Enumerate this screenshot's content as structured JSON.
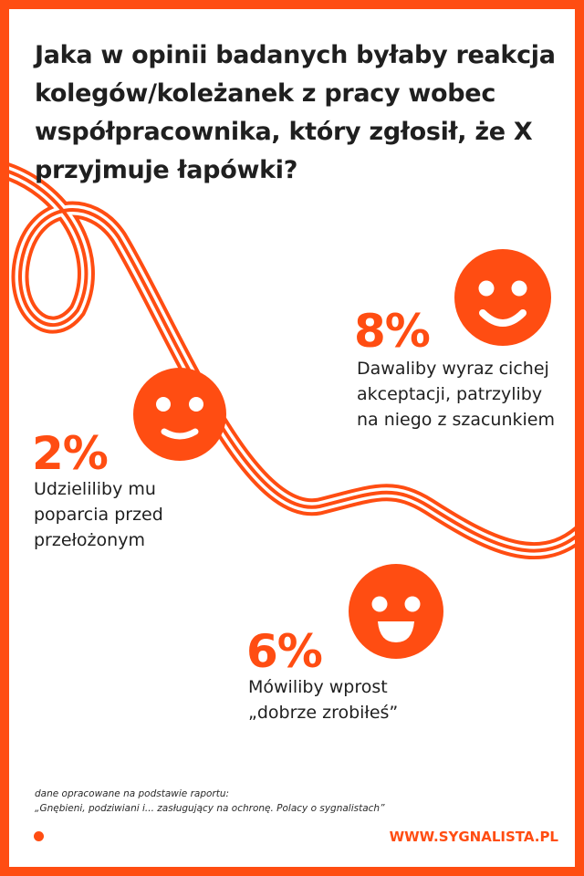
{
  "title": "Jaka w opinii badanych byłaby reakcja kolegów/koleżanek z pracy wobec współpracownika, który zgłosił, że X przyjmuje łapówki?",
  "stats": [
    {
      "percent": "8%",
      "label": "Dawaliby wyraz cichej akceptacji, patrzyliby na niego z szacunkiem",
      "icon": "smiley-icon"
    },
    {
      "percent": "2%",
      "label": "Udzieliliby mu poparcia przed przełożonym",
      "icon": "smiley-icon"
    },
    {
      "percent": "6%",
      "label": "Mówiliby wprost „dobrze zrobiłeś”",
      "icon": "smiley-icon"
    }
  ],
  "source": {
    "line1": "dane opracowane na podstawie raportu:",
    "line2": "„Gnębieni, podziwiani i... zasługujący na ochronę. Polacy o sygnalistach”"
  },
  "footer": {
    "url": "WWW.SYGNALISTA.PL"
  },
  "colors": {
    "accent": "#ff4d12",
    "text": "#1f1f1f",
    "background": "#ffffff"
  }
}
